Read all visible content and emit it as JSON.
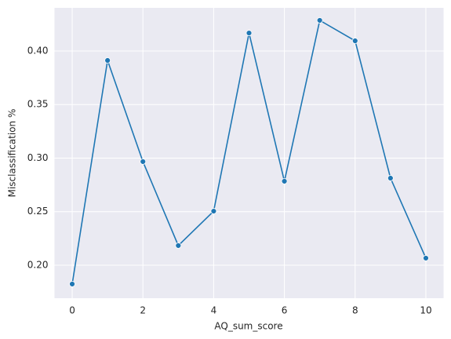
{
  "chart_data": {
    "type": "line",
    "x_label": "AQ_sum_score",
    "y_label": "Misclassification %",
    "x": [
      0,
      1,
      2,
      3,
      4,
      5,
      6,
      7,
      8,
      9,
      10
    ],
    "series": [
      {
        "color": "#1f77b4",
        "values": [
          0.1824,
          0.3912,
          0.2967,
          0.2183,
          0.2505,
          0.4168,
          0.2784,
          0.4286,
          0.4095,
          0.2813,
          0.2066
        ]
      }
    ],
    "xlim": [
      -0.5,
      10.5
    ],
    "ylim": [
      0.1692,
      0.4403
    ],
    "xticks": [
      0,
      2,
      4,
      6,
      8,
      10
    ],
    "yticks": [
      {
        "value": 0.2,
        "label": "0.20"
      },
      {
        "value": 0.25,
        "label": "0.25"
      },
      {
        "value": 0.3,
        "label": "0.30"
      },
      {
        "value": 0.35,
        "label": "0.35"
      },
      {
        "value": 0.4,
        "label": "0.40"
      }
    ],
    "grid": true,
    "background": "#eaeaf2"
  }
}
